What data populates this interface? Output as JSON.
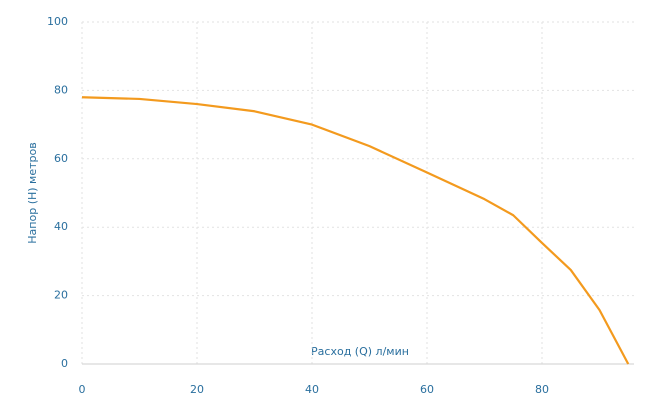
{
  "chart_data": {
    "type": "line",
    "x_label": "Расход (Q) л/мин",
    "y_label": "Напор (H) метров",
    "x": [
      0,
      10,
      20,
      30,
      40,
      50,
      60,
      70,
      75,
      80,
      85,
      90,
      95
    ],
    "series": [
      {
        "color": "#f39a1e",
        "values": [
          78,
          77.5,
          76,
          73.9,
          70,
          63.7,
          56,
          48.2,
          43.5,
          35.4,
          27.5,
          15.8,
          0
        ]
      }
    ],
    "xlim": [
      0,
      96
    ],
    "ylim": [
      0,
      100
    ],
    "xticks": [
      0,
      20,
      40,
      60,
      80
    ],
    "yticks": [
      0,
      20,
      40,
      60,
      80,
      100
    ],
    "grid": true
  }
}
